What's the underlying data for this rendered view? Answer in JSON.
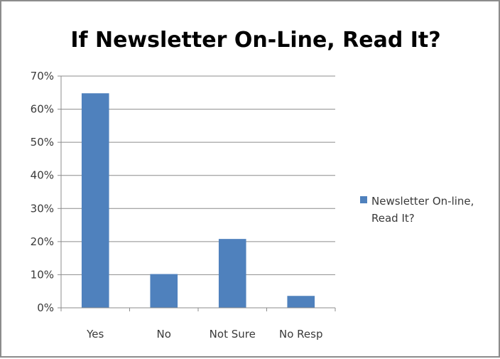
{
  "chart_data": {
    "type": "bar",
    "title": "If Newsletter On-Line, Read It?",
    "categories": [
      "Yes",
      "No",
      "Not Sure",
      "No Resp"
    ],
    "series": [
      {
        "name": "Newsletter On-line, Read It?",
        "name_lines": [
          "Newsletter On-line,",
          "Read It?"
        ],
        "values": [
          0.648,
          0.102,
          0.208,
          0.036
        ],
        "color": "#4f81bd"
      }
    ],
    "ylim": [
      0,
      0.7
    ],
    "yticks": [
      0,
      0.1,
      0.2,
      0.3,
      0.4,
      0.5,
      0.6,
      0.7
    ],
    "ytick_labels": [
      "0%",
      "10%",
      "20%",
      "30%",
      "40%",
      "50%",
      "60%",
      "70%"
    ],
    "grid": true,
    "legend": "right",
    "xlabel": "",
    "ylabel": ""
  },
  "colors": {
    "bar": "#4f81bd",
    "gridline": "#8c8c8c",
    "axis": "#8c8c8c",
    "frame": "#8c8c8c"
  }
}
